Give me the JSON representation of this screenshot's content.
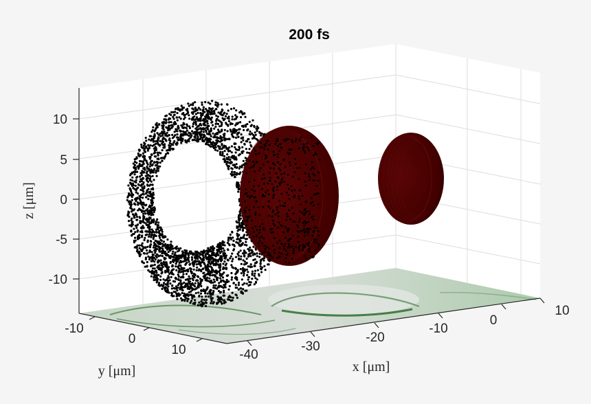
{
  "chart_data": {
    "type": "scatter3d",
    "title": "200 fs",
    "xlabel": "x [μm]",
    "ylabel": "y [μm]",
    "zlabel": "z [μm]",
    "xlim": [
      -45,
      12
    ],
    "ylim": [
      -13,
      13
    ],
    "zlim": [
      -14,
      14
    ],
    "xticks": [
      -40,
      -30,
      -20,
      -10,
      0,
      10
    ],
    "yticks": [
      -10,
      0,
      10
    ],
    "zticks": [
      10,
      5,
      0,
      -5,
      -10
    ],
    "xtick_labels": [
      "-40",
      "-30",
      "-20",
      "-10",
      "0",
      "10"
    ],
    "ytick_labels": [
      "-10",
      "0",
      "10"
    ],
    "ztick_labels": [
      "10",
      "5",
      "0",
      "-5",
      "-10"
    ],
    "grid": true,
    "series": [
      {
        "kind": "electron-shell",
        "center": [
          -38,
          0,
          0
        ],
        "radius_outer": 11,
        "radius_inner": 6,
        "color": "#000000"
      },
      {
        "kind": "ion-disk",
        "center": [
          -28,
          0,
          0
        ],
        "radius": 9,
        "color": "#4a0000"
      },
      {
        "kind": "ion-disk",
        "center": [
          -8,
          0,
          3
        ],
        "radius": 6,
        "color": "#4a0000"
      },
      {
        "kind": "density-projection",
        "plane": "z=-14",
        "colormap": "green"
      }
    ]
  }
}
